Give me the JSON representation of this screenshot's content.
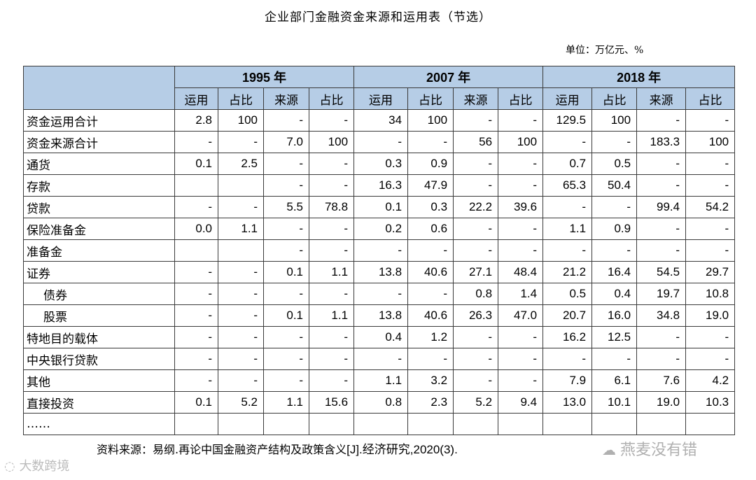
{
  "title": "企业部门金融资金来源和运用表（节选）",
  "unit": "单位：万亿元、%",
  "years": [
    "1995 年",
    "2007 年",
    "2018 年"
  ],
  "col_headers": [
    "运用",
    "占比",
    "来源",
    "占比"
  ],
  "rows": [
    {
      "label": "资金运用合计",
      "indent": false,
      "cells": [
        "2.8",
        "100",
        "-",
        "-",
        "34",
        "100",
        "-",
        "-",
        "129.5",
        "100",
        "-",
        "-"
      ]
    },
    {
      "label": "资金来源合计",
      "indent": false,
      "cells": [
        "-",
        "-",
        "7.0",
        "100",
        "-",
        "-",
        "56",
        "100",
        "-",
        "-",
        "183.3",
        "100"
      ]
    },
    {
      "label": "通货",
      "indent": false,
      "cells": [
        "0.1",
        "2.5",
        "-",
        "-",
        "0.3",
        "0.9",
        "-",
        "-",
        "0.7",
        "0.5",
        "-",
        "-"
      ]
    },
    {
      "label": "存款",
      "indent": false,
      "cells": [
        "",
        "",
        "-",
        "-",
        "16.3",
        "47.9",
        "-",
        "-",
        "65.3",
        "50.4",
        "-",
        "-"
      ]
    },
    {
      "label": "贷款",
      "indent": false,
      "cells": [
        "-",
        "-",
        "5.5",
        "78.8",
        "0.1",
        "0.3",
        "22.2",
        "39.6",
        "-",
        "-",
        "99.4",
        "54.2"
      ]
    },
    {
      "label": "保险准备金",
      "indent": false,
      "cells": [
        "0.0",
        "1.1",
        "-",
        "-",
        "0.2",
        "0.6",
        "-",
        "-",
        "1.1",
        "0.9",
        "-",
        "-"
      ]
    },
    {
      "label": "准备金",
      "indent": false,
      "cells": [
        "",
        "",
        "-",
        "-",
        "-",
        "-",
        "-",
        "-",
        "-",
        "-",
        "-",
        "-"
      ]
    },
    {
      "label": "证券",
      "indent": false,
      "cells": [
        "-",
        "-",
        "0.1",
        "1.1",
        "13.8",
        "40.6",
        "27.1",
        "48.4",
        "21.2",
        "16.4",
        "54.5",
        "29.7"
      ]
    },
    {
      "label": "债券",
      "indent": true,
      "cells": [
        "-",
        "-",
        "-",
        "-",
        "-",
        "-",
        "0.8",
        "1.4",
        "0.5",
        "0.4",
        "19.7",
        "10.8"
      ]
    },
    {
      "label": "股票",
      "indent": true,
      "cells": [
        "-",
        "-",
        "0.1",
        "1.1",
        "13.8",
        "40.6",
        "26.3",
        "47.0",
        "20.7",
        "16.0",
        "34.8",
        "19.0"
      ]
    },
    {
      "label": "特地目的载体",
      "indent": false,
      "cells": [
        "-",
        "-",
        "-",
        "-",
        "0.4",
        "1.2",
        "-",
        "-",
        "16.2",
        "12.5",
        "-",
        "-"
      ]
    },
    {
      "label": "中央银行贷款",
      "indent": false,
      "cells": [
        "-",
        "-",
        "-",
        "-",
        "-",
        "-",
        "-",
        "-",
        "-",
        "-",
        "-",
        "-"
      ]
    },
    {
      "label": "其他",
      "indent": false,
      "cells": [
        "-",
        "-",
        "-",
        "-",
        "1.1",
        "3.2",
        "-",
        "-",
        "7.9",
        "6.1",
        "7.6",
        "4.2"
      ]
    },
    {
      "label": "直接投资",
      "indent": false,
      "cells": [
        "0.1",
        "5.2",
        "1.1",
        "15.6",
        "0.8",
        "2.3",
        "5.2",
        "9.4",
        "13.0",
        "10.1",
        "19.0",
        "10.3"
      ]
    },
    {
      "label": "……",
      "indent": false,
      "cells": [
        "",
        "",
        "",
        "",
        "",
        "",
        "",
        "",
        "",
        "",
        "",
        ""
      ]
    }
  ],
  "source": {
    "prefix": "资料来源：易纲.再论中国金融资产结构及政策含义",
    "suffix": "[J].经济研究,2020(3)."
  },
  "watermark_right": "燕麦没有错",
  "watermark_left": "大数跨境",
  "colors": {
    "header_bg": "#b6cde6",
    "border": "#3a3a3a"
  }
}
